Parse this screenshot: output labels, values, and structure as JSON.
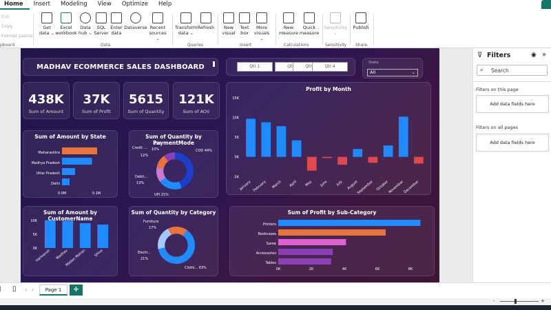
{
  "menu": {
    "tabs": [
      "Home",
      "Insert",
      "Modeling",
      "View",
      "Optimize",
      "Help"
    ]
  },
  "clipboard": {
    "cut": "Cut",
    "copy": "Copy",
    "format_painter": "Format painter",
    "group": "pboard"
  },
  "ribbon": {
    "get_data": [
      "Get",
      "data ⌄"
    ],
    "excel": [
      "Excel",
      "workbook"
    ],
    "data_hub": [
      "Data",
      "hub ⌄"
    ],
    "sql": [
      "SQL",
      "Server"
    ],
    "enter_data": [
      "Enter",
      "data"
    ],
    "dataverse": [
      "Dataverse",
      ""
    ],
    "recent": [
      "Recent",
      "sources ⌄"
    ],
    "transform": [
      "Transform",
      "data ⌄"
    ],
    "refresh": [
      "Refresh",
      ""
    ],
    "new_visual": [
      "New",
      "visual"
    ],
    "text_box": [
      "Text",
      "box"
    ],
    "more_visuals": [
      "More",
      "visuals ⌄"
    ],
    "new_measure": [
      "New",
      "measure"
    ],
    "quick_measure": [
      "Quick",
      "measure"
    ],
    "sensitivity": [
      "Sensitivity",
      "⌄"
    ],
    "publish": [
      "Publish",
      ""
    ],
    "groups": {
      "data": "Data",
      "queries": "Queries",
      "insert": "Insert",
      "calculations": "Calculations",
      "sensitivity": "Sensitivity",
      "share": "Share"
    }
  },
  "report": {
    "title": "MADHAV ECOMMERCE SALES DASHBOARD",
    "quarters": [
      "Qtr 1",
      "Qtr 2",
      "Qtr 3",
      "Qtr 4"
    ],
    "slicer": {
      "label": "State",
      "value": "All"
    },
    "kpis": [
      {
        "value": "438K",
        "label": "Sum of Amount"
      },
      {
        "value": "37K",
        "label": "Sum of Profit"
      },
      {
        "value": "5615",
        "label": "Sum of Quantity"
      },
      {
        "value": "121K",
        "label": "Sum of AOV"
      }
    ],
    "colors": {
      "blue": "#1f8bff",
      "orange": "#e8743b",
      "pink": "#e05fd1",
      "purple": "#8b3fb3",
      "red": "#e0484e",
      "navy": "#1b3fc9",
      "light": "#9fc9ff",
      "lav": "#c779d0"
    }
  },
  "chart_data": [
    {
      "type": "bar",
      "orientation": "horizontal",
      "title": "Sum of Amount by State",
      "categories": [
        "Maharashtra",
        "Madhya Pradesh",
        "Uttar Pradesh",
        "Delhi"
      ],
      "values": [
        102000,
        87000,
        38000,
        22000
      ],
      "ticks": [
        "0.0M",
        "0.1M"
      ],
      "xlim": [
        0,
        140000
      ]
    },
    {
      "type": "pie",
      "donut": true,
      "title": "Sum of Quantity by PaymentMode",
      "slices": [
        {
          "label": "COD",
          "pct": 44
        },
        {
          "label": "UPI",
          "pct": 21
        },
        {
          "label": "Debit...",
          "pct": 13
        },
        {
          "label": "Credit ...",
          "pct": 12
        },
        {
          "label": "EMI",
          "pct": 10
        }
      ],
      "labels": [
        "COD 44%",
        "UPI 21%",
        "Debit...",
        "13%",
        "Credit ...",
        "12%",
        "EMI",
        "10%"
      ]
    },
    {
      "type": "bar",
      "title": "Profit by Month",
      "categories": [
        "January",
        "February",
        "March",
        "April",
        "May",
        "June",
        "July",
        "August",
        "September",
        "October",
        "November",
        "December"
      ],
      "values": [
        9700,
        8800,
        7800,
        4200,
        -3500,
        -300,
        -2000,
        2000,
        -1500,
        2900,
        10200,
        -1700
      ],
      "ticks": [
        "15K",
        "10K",
        "5K",
        "0K",
        "-5K"
      ],
      "ylim": [
        -6000,
        15000
      ]
    },
    {
      "type": "bar",
      "title": "Sum of Amount by CustomerName",
      "categories": [
        "Harivansh",
        "Madhav",
        "Madan Mohan",
        "Shiva"
      ],
      "values": [
        10100,
        9900,
        9000,
        8500
      ],
      "ticks": [
        "10K",
        "5K",
        "0K"
      ],
      "ylim": [
        0,
        11000
      ]
    },
    {
      "type": "pie",
      "donut": true,
      "title": "Sum of Quantity by Category",
      "slices": [
        {
          "label": "Clothi...",
          "pct": 63
        },
        {
          "label": "Electr...",
          "pct": 21
        },
        {
          "label": "Furniture",
          "pct": 17
        }
      ],
      "labels": [
        "Clothi... 63%",
        "Electr...",
        "21%",
        "Furniture",
        "17%"
      ]
    },
    {
      "type": "bar",
      "orientation": "horizontal",
      "title": "Sum of Profit by Sub-Category",
      "categories": [
        "Printers",
        "Bookcases",
        "Saree",
        "Accessories",
        "Tables"
      ],
      "values": [
        8600,
        6500,
        4100,
        3300,
        3200
      ],
      "ticks": [
        "0K",
        "2K",
        "4K",
        "6K",
        "8K"
      ],
      "xlim": [
        0,
        9000
      ]
    }
  ],
  "filters": {
    "title": "Filters",
    "search": "Search",
    "on_page": "Filters on this page",
    "on_all": "Filters on all pages",
    "add": "Add data fields here"
  },
  "pages": {
    "current": "Page 1",
    "add": "+"
  }
}
